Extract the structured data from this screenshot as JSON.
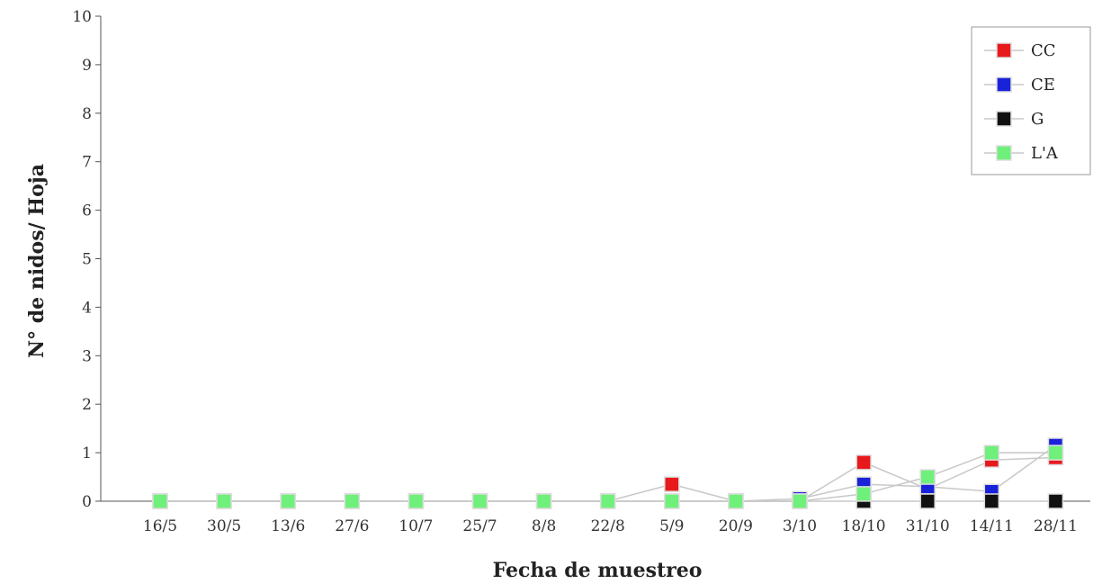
{
  "chart_data": {
    "type": "line",
    "title": "",
    "xlabel": "Fecha de muestreo",
    "ylabel": "N° de nidos/ Hoja",
    "categories": [
      "16/5",
      "30/5",
      "13/6",
      "27/6",
      "10/7",
      "25/7",
      "8/8",
      "22/8",
      "5/9",
      "20/9",
      "3/10",
      "18/10",
      "31/10",
      "14/11",
      "28/11"
    ],
    "ylim": [
      0,
      10
    ],
    "yticks": [
      "0",
      "1",
      "2",
      "3",
      "4",
      "5",
      "6",
      "7",
      "8",
      "9",
      "10"
    ],
    "grid": false,
    "legend_position": "top-right",
    "series": [
      {
        "name": "CC",
        "color": "#e8191c",
        "values": [
          0,
          0,
          0,
          0,
          0,
          0,
          0,
          0,
          0.35,
          0,
          0,
          0.8,
          0.25,
          0.85,
          0.9
        ]
      },
      {
        "name": "CE",
        "color": "#1a22d9",
        "values": [
          0,
          0,
          0,
          0,
          0,
          0,
          0,
          0,
          0,
          0,
          0.05,
          0.35,
          0.3,
          0.2,
          1.15
        ]
      },
      {
        "name": "G",
        "color": "#111111",
        "values": [
          0,
          0,
          0,
          0,
          0,
          0,
          0,
          0,
          0,
          0,
          0,
          0,
          0,
          0,
          0
        ]
      },
      {
        "name": "L'A",
        "color": "#6ef07a",
        "values": [
          0,
          0,
          0,
          0,
          0,
          0,
          0,
          0,
          0,
          0,
          0,
          0.15,
          0.5,
          1.0,
          1.0
        ]
      }
    ]
  }
}
